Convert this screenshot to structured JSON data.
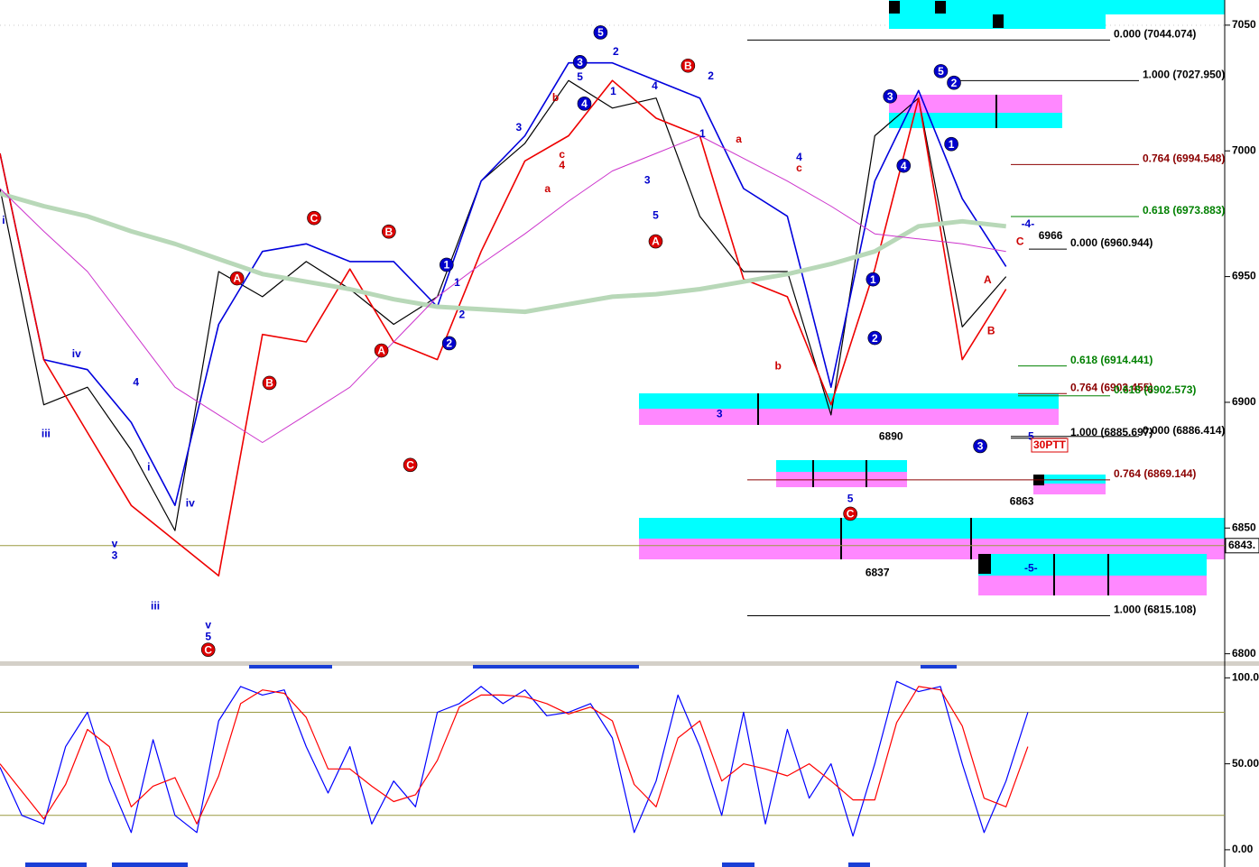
{
  "chart_data": [
    {
      "type": "line",
      "x": [
        0,
        10,
        20,
        30,
        40,
        50,
        60,
        70,
        80,
        90,
        100,
        110,
        120,
        130,
        140,
        150,
        160,
        170,
        180,
        190,
        200,
        210,
        220,
        230
      ],
      "xlim": [
        0,
        280
      ],
      "ylim": [
        6797,
        7060
      ],
      "yticks": [
        6800,
        6850,
        6900,
        6950,
        7000,
        7050
      ],
      "series": [
        {
          "color": "#000000",
          "values": [
            6985,
            6899,
            6906,
            6881,
            6849,
            6952,
            6942,
            6956,
            6945,
            6931,
            6942,
            6988,
            7003,
            7028,
            7017,
            7021,
            6974,
            6952,
            6952,
            6895,
            7006,
            7021,
            6930,
            6950
          ]
        },
        {
          "color": "#0000dd",
          "values": [
            6999,
            6917,
            6913,
            6892,
            6859,
            6931,
            6960,
            6963,
            6956,
            6956,
            6938,
            6988,
            7006,
            7035,
            7035,
            7028,
            7021,
            6985,
            6974,
            6906,
            6988,
            7024,
            6981,
            6954
          ]
        },
        {
          "color": "#ee0000",
          "values": [
            6999,
            6917,
            6888,
            6859,
            6845,
            6831,
            6927,
            6924,
            6953,
            6924,
            6917,
            6960,
            6996,
            7006,
            7028,
            7013,
            7006,
            6949,
            6942,
            6899,
            6953,
            7021,
            6917,
            6945
          ]
        },
        {
          "color": "#b8d8b8",
          "values": [
            6983,
            6978,
            6974,
            6968,
            6963,
            6957,
            6951,
            6948,
            6945,
            6941,
            6938,
            6937,
            6936,
            6939,
            6942,
            6943,
            6945,
            6948,
            6951,
            6955,
            6960,
            6970,
            6972,
            6970
          ]
        },
        {
          "color": "#cc33cc",
          "values": [
            6985,
            6968,
            6952,
            6929,
            6906,
            6895,
            6884,
            6895,
            6906,
            6924,
            6942,
            6955,
            6967,
            6980,
            6992,
            6999,
            7006,
            6997,
            6988,
            6978,
            6967,
            6965,
            6963,
            6960
          ]
        }
      ],
      "levels": [
        {
          "label": "0.000 (7044.074)",
          "value": 7044.074,
          "color": "#000000"
        },
        {
          "label": "1.000 (7027.950)",
          "value": 7027.95,
          "color": "#000000"
        },
        {
          "label": "0.764 (6994.548)",
          "value": 6994.548,
          "color": "#8b0000"
        },
        {
          "label": "0.618 (6973.883)",
          "value": 6973.883,
          "color": "#008000"
        },
        {
          "label": "0.000 (6960.944)",
          "value": 6960.944,
          "color": "#000000"
        },
        {
          "label": "0.618 (6914.441)",
          "value": 6914.441,
          "color": "#008000"
        },
        {
          "label": "0.764 (6903.455)",
          "value": 6903.455,
          "color": "#8b0000"
        },
        {
          "label": "0.618 (6902.573)",
          "value": 6902.573,
          "color": "#008000"
        },
        {
          "label": "1.000 (6885.697)",
          "value": 6885.697,
          "color": "#000000"
        },
        {
          "label": "0.000 (6886.414)",
          "value": 6886.414,
          "color": "#000000"
        },
        {
          "label": "0.764 (6869.144)",
          "value": 6869.144,
          "color": "#8b0000"
        },
        {
          "label": "1.000 (6815.108)",
          "value": 6815.108,
          "color": "#000000"
        }
      ],
      "marker": {
        "label": "6843.",
        "value": 6843
      },
      "tag": "30PTT",
      "wave_labels": {
        "blue_circled": [
          {
            "text": "5",
            "x": 137.3,
            "y": 7047.1
          },
          {
            "text": "3",
            "x": 132.6,
            "y": 7035.3
          },
          {
            "text": "4",
            "x": 133.6,
            "y": 7018.8
          },
          {
            "text": "1",
            "x": 102.1,
            "y": 6954.7
          },
          {
            "text": "2",
            "x": 102.7,
            "y": 6923.5
          },
          {
            "text": "3",
            "x": 203.5,
            "y": 7021.7
          },
          {
            "text": "5",
            "x": 215.1,
            "y": 7031.7
          },
          {
            "text": "2",
            "x": 218.1,
            "y": 7027.1
          },
          {
            "text": "1",
            "x": 217.5,
            "y": 7002.7
          },
          {
            "text": "4",
            "x": 206.6,
            "y": 6994.1
          },
          {
            "text": "1",
            "x": 199.6,
            "y": 6948.9
          },
          {
            "text": "2",
            "x": 200.0,
            "y": 6925.6
          },
          {
            "text": "3",
            "x": 224.1,
            "y": 6882.6
          }
        ],
        "red_circled": [
          {
            "text": "A",
            "x": 54.2,
            "y": 6949.3
          },
          {
            "text": "B",
            "x": 61.6,
            "y": 6907.7
          },
          {
            "text": "C",
            "x": 71.8,
            "y": 6973.3
          },
          {
            "text": "B",
            "x": 88.9,
            "y": 6967.9
          },
          {
            "text": "A",
            "x": 87.2,
            "y": 6920.6
          },
          {
            "text": "C",
            "x": 93.8,
            "y": 6875.1
          },
          {
            "text": "C",
            "x": 47.6,
            "y": 6801.6
          },
          {
            "text": "B",
            "x": 157.3,
            "y": 7033.9
          },
          {
            "text": "A",
            "x": 149.9,
            "y": 6964.0
          },
          {
            "text": "C",
            "x": 194.4,
            "y": 6855.7
          }
        ],
        "blue": [
          {
            "text": "i",
            "x": 0.8,
            "y": 6972.6
          },
          {
            "text": "iv",
            "x": 17.5,
            "y": 6919.5
          },
          {
            "text": "iii",
            "x": 10.5,
            "y": 6887.6
          },
          {
            "text": "4",
            "x": 31.1,
            "y": 6908.1
          },
          {
            "text": "i",
            "x": 34.0,
            "y": 6874.4
          },
          {
            "text": "v",
            "x": 26.2,
            "y": 6843.9
          },
          {
            "text": "3",
            "x": 26.2,
            "y": 6839.2
          },
          {
            "text": "iv",
            "x": 43.5,
            "y": 6860.0
          },
          {
            "text": "iii",
            "x": 35.5,
            "y": 6819.2
          },
          {
            "text": "v",
            "x": 47.6,
            "y": 6811.6
          },
          {
            "text": "5",
            "x": 47.6,
            "y": 6807.0
          },
          {
            "text": "1",
            "x": 104.5,
            "y": 6947.8
          },
          {
            "text": "2",
            "x": 105.6,
            "y": 6935.0
          },
          {
            "text": "3",
            "x": 118.6,
            "y": 7009.5
          },
          {
            "text": "5",
            "x": 132.6,
            "y": 7029.6
          },
          {
            "text": "2",
            "x": 140.8,
            "y": 7039.6
          },
          {
            "text": "1",
            "x": 140.2,
            "y": 7023.8
          },
          {
            "text": "4",
            "x": 149.7,
            "y": 7026.0
          },
          {
            "text": "3",
            "x": 148.0,
            "y": 6988.4
          },
          {
            "text": "5",
            "x": 149.9,
            "y": 6974.4
          },
          {
            "text": "2",
            "x": 162.5,
            "y": 7029.9
          },
          {
            "text": "1",
            "x": 160.6,
            "y": 7007.0
          },
          {
            "text": "3",
            "x": 164.5,
            "y": 6895.5
          },
          {
            "text": "4",
            "x": 182.7,
            "y": 6997.7
          },
          {
            "text": "5",
            "x": 194.4,
            "y": 6861.8
          },
          {
            "text": "-4-",
            "x": 235.0,
            "y": 6971.1
          },
          {
            "text": "-5-",
            "x": 235.7,
            "y": 6834.2
          },
          {
            "text": "5",
            "x": 235.7,
            "y": 6886.6
          }
        ],
        "red": [
          {
            "text": "b",
            "x": 127.0,
            "y": 7021.3
          },
          {
            "text": "c",
            "x": 128.5,
            "y": 6998.7
          },
          {
            "text": "4",
            "x": 128.5,
            "y": 6994.4
          },
          {
            "text": "a",
            "x": 125.2,
            "y": 6985.1
          },
          {
            "text": "a",
            "x": 168.9,
            "y": 7004.8
          },
          {
            "text": "c",
            "x": 182.7,
            "y": 6993.4
          },
          {
            "text": "b",
            "x": 177.9,
            "y": 6914.5
          },
          {
            "text": "A",
            "x": 225.8,
            "y": 6948.9
          },
          {
            "text": "B",
            "x": 226.6,
            "y": 6928.5
          },
          {
            "text": "C",
            "x": 233.2,
            "y": 6964.0
          }
        ],
        "black": [
          {
            "text": "6966",
            "x": 240.2,
            "y": 6966.5
          },
          {
            "text": "6890",
            "x": 203.7,
            "y": 6886.6
          },
          {
            "text": "6837",
            "x": 200.6,
            "y": 6832.4
          },
          {
            "text": "6863",
            "x": 233.6,
            "y": 6860.8
          }
        ]
      }
    },
    {
      "type": "line",
      "x": [
        0,
        5,
        10,
        15,
        20,
        25,
        30,
        35,
        40,
        45,
        50,
        55,
        60,
        65,
        70,
        75,
        80,
        85,
        90,
        95,
        100,
        105,
        110,
        115,
        120,
        125,
        130,
        135,
        140,
        145,
        150,
        155,
        160,
        165,
        170,
        175,
        180,
        185,
        190,
        195,
        200,
        205,
        210,
        215,
        220,
        225,
        230,
        235
      ],
      "xlim": [
        0,
        280
      ],
      "ylim": [
        -9.5,
        107
      ],
      "yticks": [
        {
          "value": 0,
          "label": "0.00"
        },
        {
          "value": 50,
          "label": "50.00"
        },
        {
          "value": 100,
          "label": "100.0"
        }
      ],
      "levels": [
        20,
        80
      ],
      "series": [
        {
          "color": "#0000ff",
          "values": [
            48,
            20,
            15,
            60,
            80,
            40,
            10,
            64,
            20,
            10,
            75,
            95,
            90,
            93,
            60,
            33,
            60,
            15,
            40,
            25,
            80,
            85,
            95,
            85,
            93,
            78,
            80,
            85,
            65,
            10,
            40,
            90,
            60,
            20,
            80,
            15,
            70,
            30,
            50,
            8,
            50,
            98,
            92,
            95,
            50,
            10,
            40,
            80
          ]
        },
        {
          "color": "#ff0000",
          "values": [
            50,
            34,
            18,
            38,
            70,
            60,
            25,
            37,
            42,
            15,
            43,
            85,
            93,
            91,
            77,
            47,
            47,
            37,
            28,
            32,
            52,
            83,
            90,
            90,
            89,
            85,
            79,
            83,
            75,
            38,
            25,
            65,
            75,
            40,
            50,
            47,
            43,
            50,
            40,
            29,
            29,
            74,
            95,
            93,
            72,
            30,
            25,
            60
          ]
        }
      ]
    }
  ]
}
